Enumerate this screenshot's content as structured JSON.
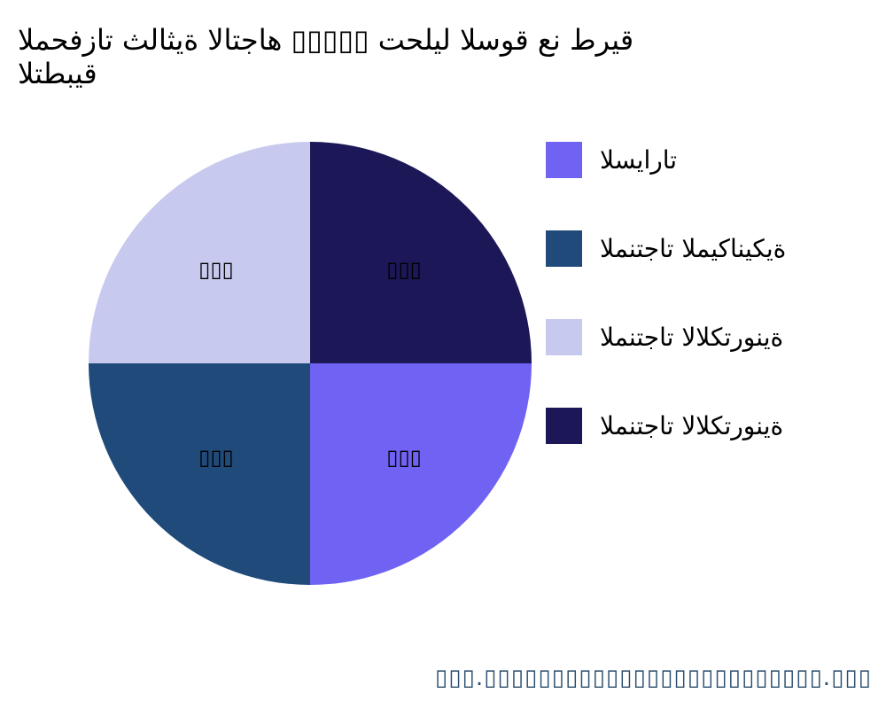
{
  "chart_data": {
    "type": "pie",
    "title_lines": [
      "المحفزات ثلاثية الاتجاه ▯▯▯▯▯ تحليل السوق عن طريق",
      "التطبيق"
    ],
    "categories": [
      "السيارات",
      "المنتجات الميكانيكية",
      "المنتجات الالكترونية",
      "المنتجات الالكترونية"
    ],
    "values": [
      25,
      25,
      25,
      25
    ],
    "data_labels": [
      "▯▯▯",
      "▯▯▯",
      "▯▯▯",
      "▯▯▯"
    ],
    "colors": [
      "#7062f2",
      "#1f4a7a",
      "#c8c9ef",
      "#1c1757"
    ],
    "start_angle_deg": 0,
    "direction": "clockwise",
    "legend_position": "right"
  },
  "footer": "▯▯▯.▯▯▯▯▯▯▯▯▯▯▯▯▯▯▯▯▯▯▯▯▯▯▯▯▯.▯▯▯"
}
